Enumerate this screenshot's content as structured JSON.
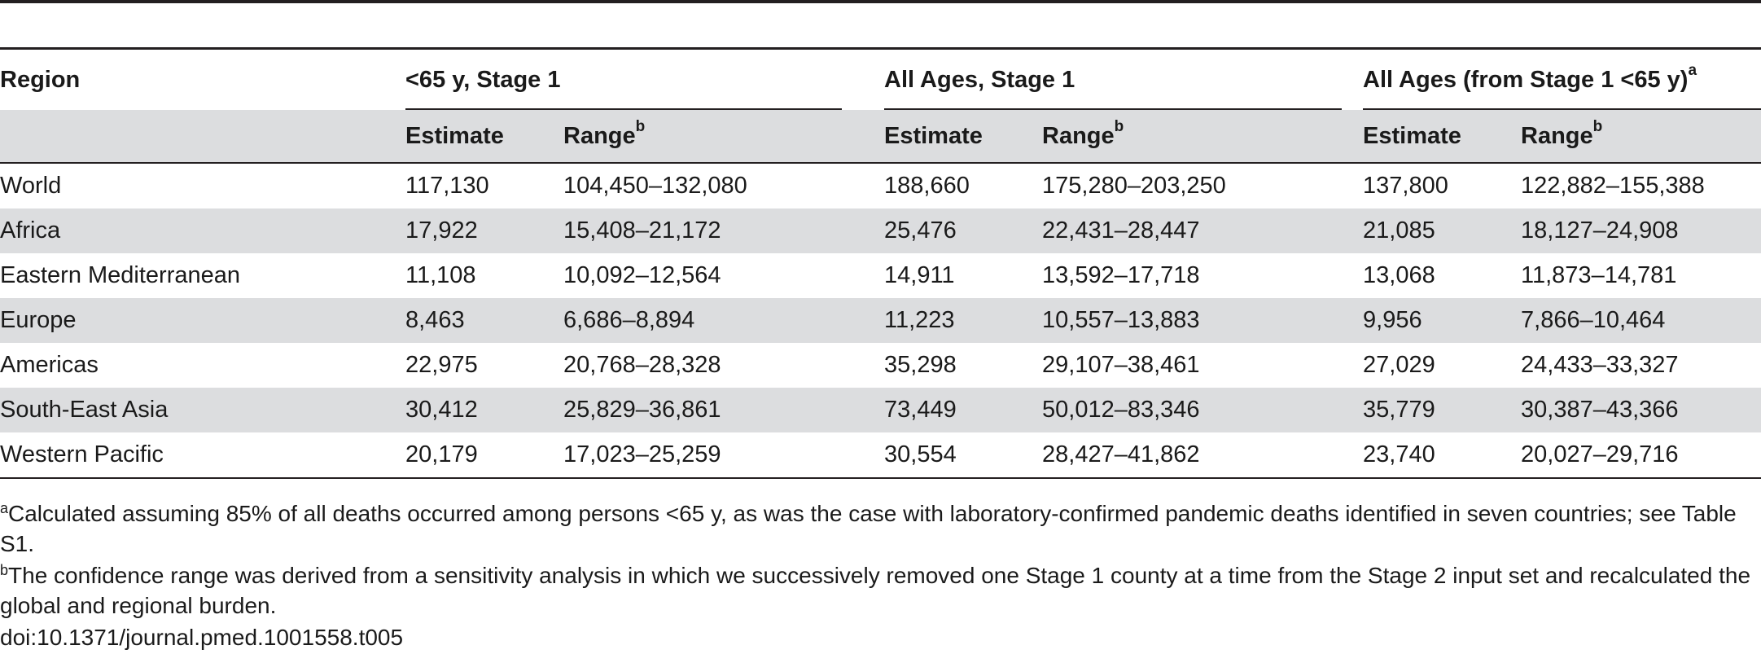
{
  "header": {
    "region": "Region",
    "groups": [
      {
        "label": "<65 y, Stage 1",
        "sup": ""
      },
      {
        "label": "All Ages, Stage 1",
        "sup": ""
      },
      {
        "label": "All Ages (from Stage 1 <65 y)",
        "sup": "a"
      }
    ],
    "estimate": "Estimate",
    "range": "Range",
    "range_sup": "b"
  },
  "rows": [
    {
      "region": "World",
      "v": [
        "117,130",
        "104,450–132,080",
        "188,660",
        "175,280–203,250",
        "137,800",
        "122,882–155,388"
      ]
    },
    {
      "region": "Africa",
      "v": [
        "17,922",
        "15,408–21,172",
        "25,476",
        "22,431–28,447",
        "21,085",
        "18,127–24,908"
      ]
    },
    {
      "region": "Eastern Mediterranean",
      "v": [
        "11,108",
        "10,092–12,564",
        "14,911",
        "13,592–17,718",
        "13,068",
        "11,873–14,781"
      ]
    },
    {
      "region": "Europe",
      "v": [
        "8,463",
        "6,686–8,894",
        "11,223",
        "10,557–13,883",
        "9,956",
        "7,866–10,464"
      ]
    },
    {
      "region": "Americas",
      "v": [
        "22,975",
        "20,768–28,328",
        "35,298",
        "29,107–38,461",
        "27,029",
        "24,433–33,327"
      ]
    },
    {
      "region": "South-East Asia",
      "v": [
        "30,412",
        "25,829–36,861",
        "73,449",
        "50,012–83,346",
        "35,779",
        "30,387–43,366"
      ]
    },
    {
      "region": "Western Pacific",
      "v": [
        "20,179",
        "17,023–25,259",
        "30,554",
        "28,427–41,862",
        "23,740",
        "20,027–29,716"
      ]
    }
  ],
  "footnotes": [
    {
      "mark": "a",
      "text": "Calculated assuming 85% of all deaths occurred among persons <65 y, as was the case with laboratory-confirmed pandemic deaths identified in seven countries; see Table S1."
    },
    {
      "mark": "b",
      "text": "The confidence range was derived from a sensitivity analysis in which we successively removed one Stage 1 county at a time from the Stage 2 input set and recalculated the global and regional burden."
    }
  ],
  "doi": "doi:10.1371/journal.pmed.1001558.t005"
}
